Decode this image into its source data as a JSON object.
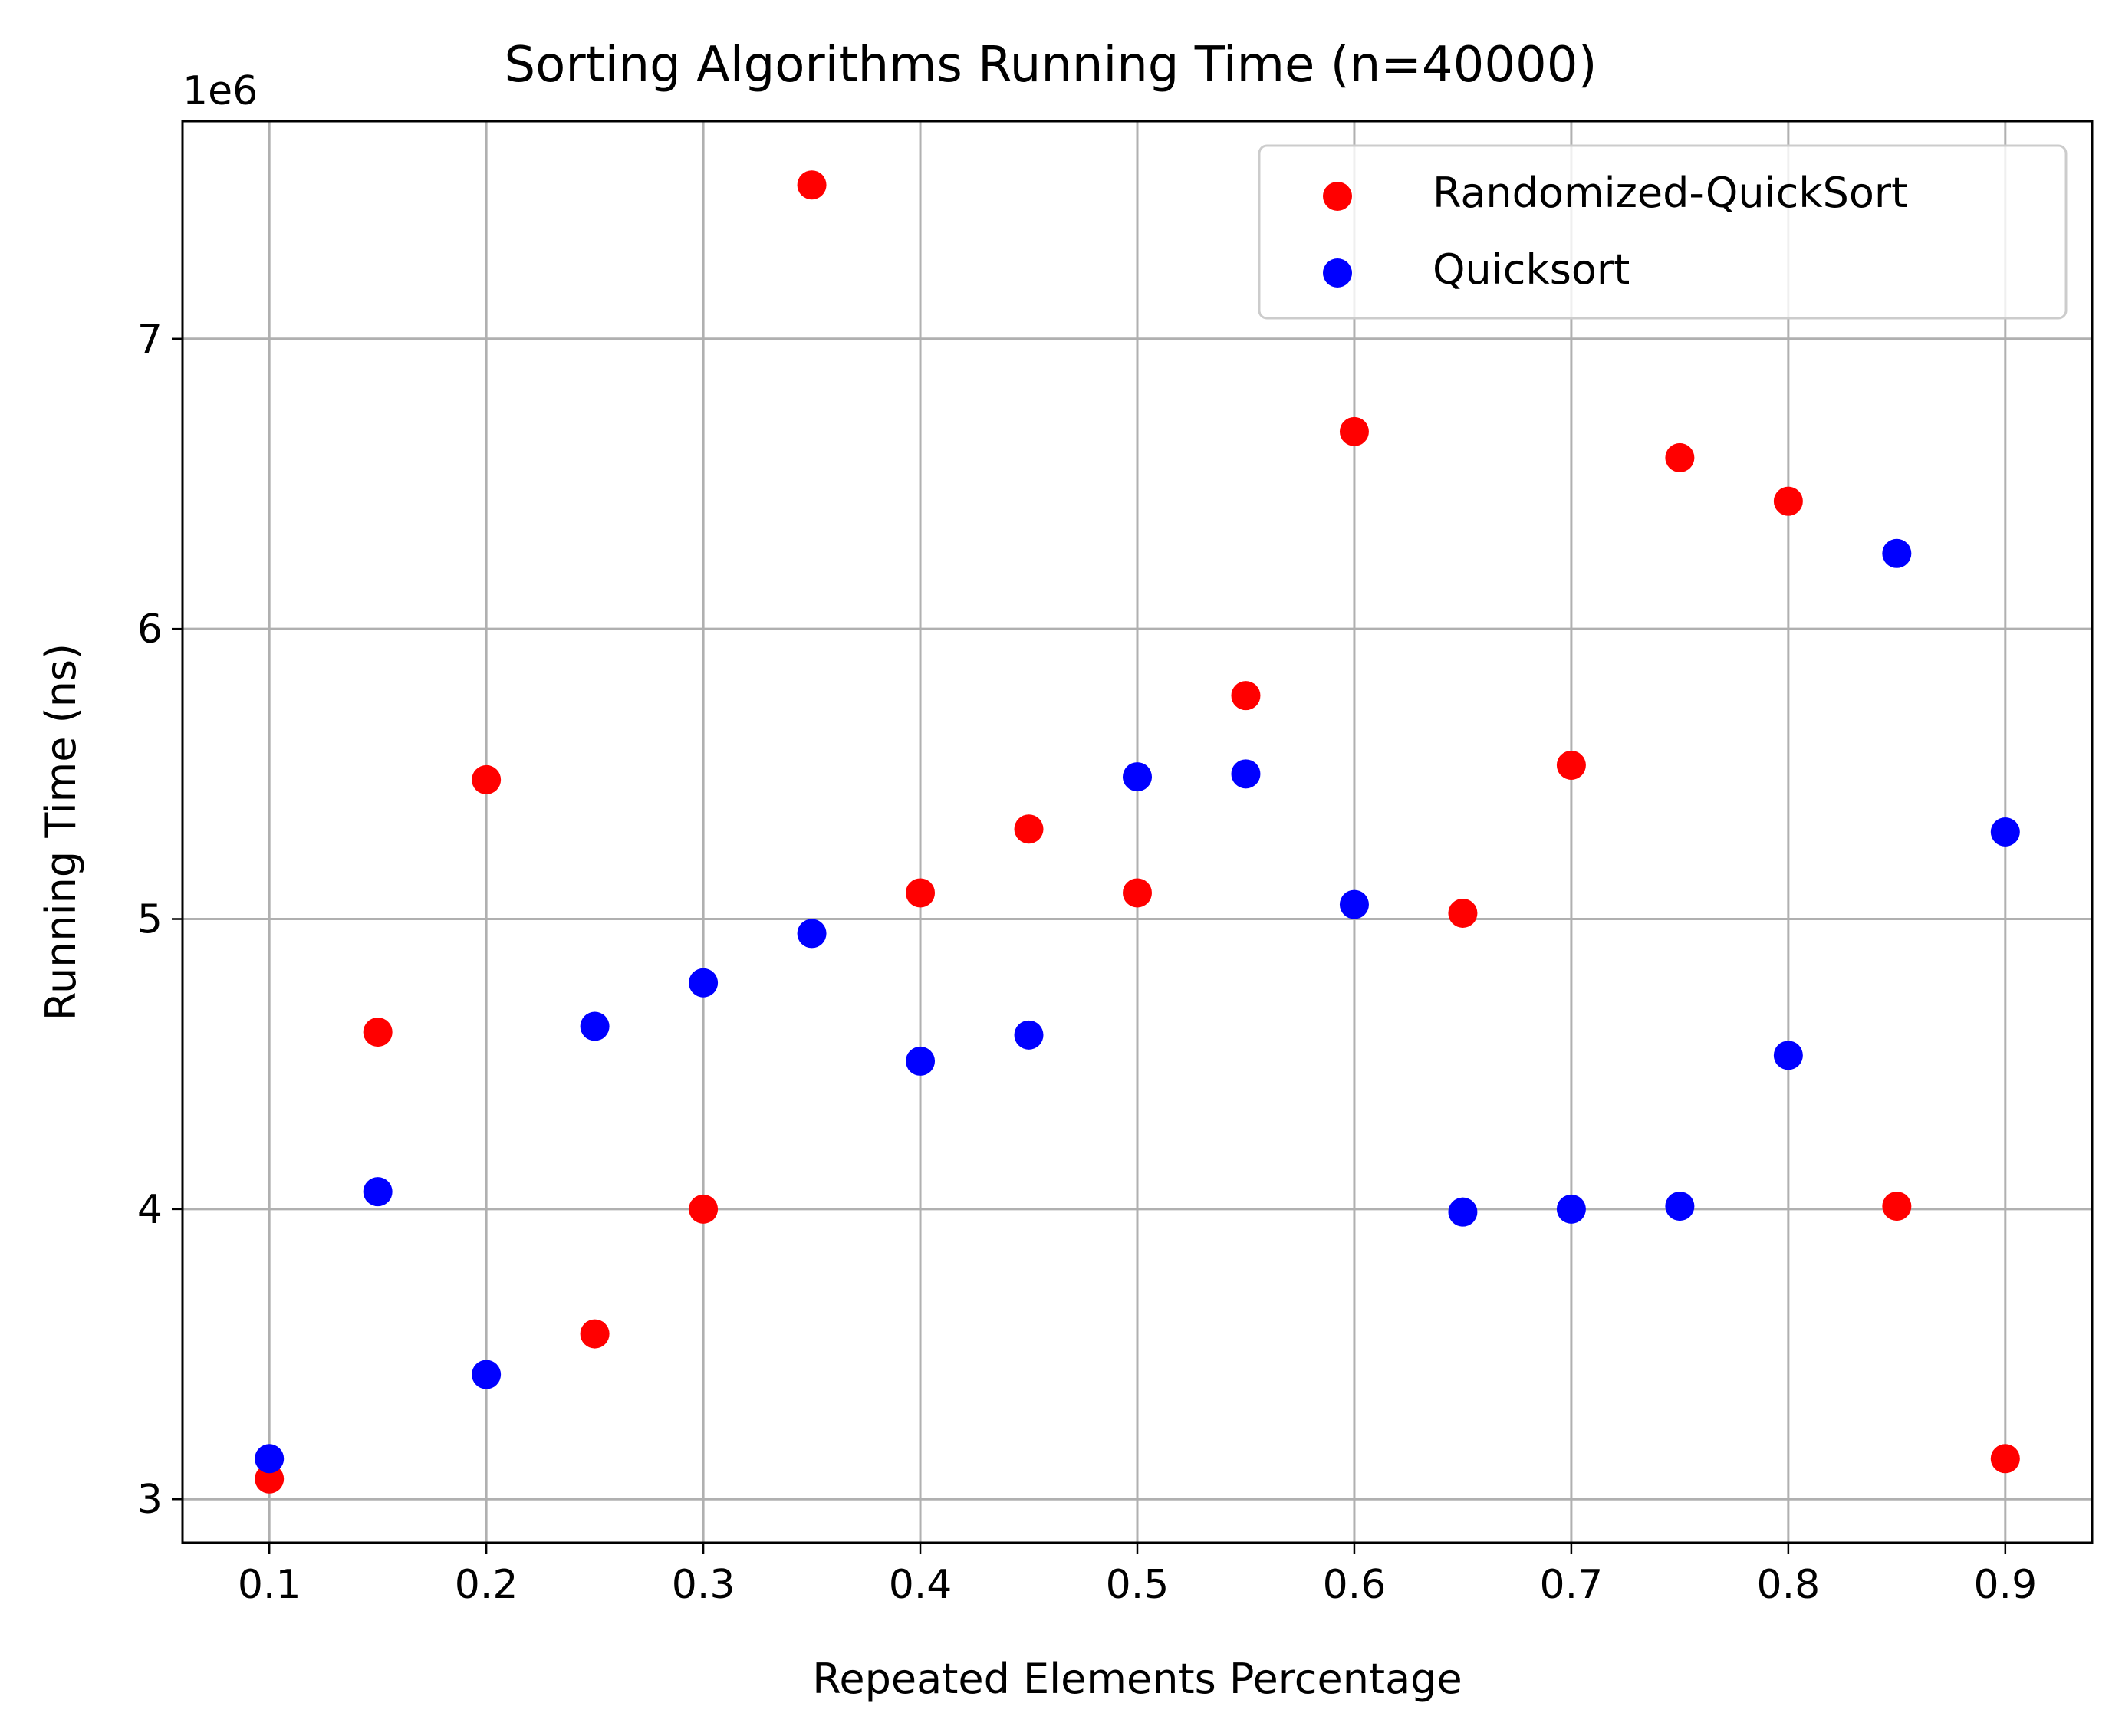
{
  "chart_data": {
    "type": "scatter",
    "title": "Sorting Algorithms Running Time (n=40000)",
    "xlabel": "Repeated Elements Percentage",
    "ylabel": "Running Time (ns)",
    "y_offset_label": "1e6",
    "y_multiplier": 1000000,
    "xlim": [
      0.06,
      0.94
    ],
    "ylim": [
      2850000,
      7750000
    ],
    "xticks": [
      0.1,
      0.2,
      0.3,
      0.4,
      0.5,
      0.6,
      0.7,
      0.8,
      0.9
    ],
    "xtick_labels": [
      "0.1",
      "0.2",
      "0.3",
      "0.4",
      "0.5",
      "0.6",
      "0.7",
      "0.8",
      "0.9"
    ],
    "yticks": [
      3000000,
      4000000,
      5000000,
      6000000,
      7000000
    ],
    "ytick_labels": [
      "3",
      "4",
      "5",
      "6",
      "7"
    ],
    "grid": true,
    "legend_position": "top-right",
    "series": [
      {
        "name": "Randomized-QuickSort",
        "color": "#ff0000",
        "x": [
          0.1,
          0.15,
          0.2,
          0.25,
          0.3,
          0.35,
          0.4,
          0.45,
          0.5,
          0.55,
          0.6,
          0.65,
          0.7,
          0.75,
          0.8,
          0.85,
          0.9
        ],
        "y": [
          3070000,
          4610000,
          5480000,
          3570000,
          4000000,
          7530000,
          5090000,
          5310000,
          5090000,
          5770000,
          6680000,
          5020000,
          5530000,
          6590000,
          6440000,
          4010000,
          3140000
        ]
      },
      {
        "name": "Quicksort",
        "color": "#0000ff",
        "x": [
          0.1,
          0.15,
          0.2,
          0.25,
          0.3,
          0.35,
          0.4,
          0.45,
          0.5,
          0.55,
          0.6,
          0.65,
          0.7,
          0.75,
          0.8,
          0.85,
          0.9
        ],
        "y": [
          3140000,
          4060000,
          3430000,
          4630000,
          4780000,
          4950000,
          4510000,
          4600000,
          5490000,
          5500000,
          5050000,
          3990000,
          4000000,
          4010000,
          4530000,
          6260000,
          5300000
        ]
      }
    ]
  }
}
